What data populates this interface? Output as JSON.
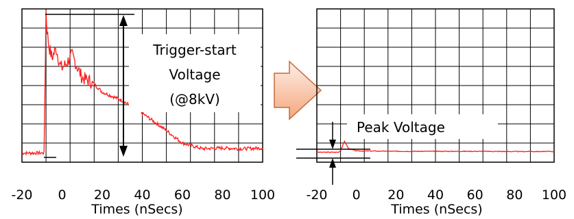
{
  "colors": {
    "trace": "#ff1a1a",
    "grid": "#000000",
    "arrow_fill_top": "#fdeee6",
    "arrow_fill_bottom": "#f4a77e",
    "arrow_stroke": "#c46a3a"
  },
  "chart_data": [
    {
      "type": "line",
      "xlabel": "Times (nSecs)",
      "ylabel": "",
      "xlim": [
        -20,
        100
      ],
      "x_ticks": [
        "-20",
        "0",
        "20",
        "40",
        "60",
        "80",
        "100"
      ],
      "grid": true,
      "annotation": {
        "lines": [
          "Trigger-start",
          "Voltage",
          "(@8kV)"
        ]
      },
      "series": [
        {
          "x": [
            -20,
            -9,
            -8,
            -7.5,
            -6.5,
            -5,
            -3,
            -1,
            0,
            2,
            5,
            10,
            15,
            20,
            30,
            40,
            50,
            60,
            70,
            80,
            90,
            100
          ],
          "y": [
            0.0,
            0.0,
            1.0,
            0.87,
            0.75,
            0.67,
            0.74,
            0.62,
            0.6,
            0.63,
            0.69,
            0.53,
            0.5,
            0.43,
            0.37,
            0.28,
            0.18,
            0.07,
            0.03,
            0.035,
            0.03,
            0.035
          ]
        }
      ]
    },
    {
      "type": "line",
      "xlabel": "Times (nSecs)",
      "ylabel": "",
      "xlim": [
        -20,
        100
      ],
      "x_ticks": [
        "-20",
        "0",
        "20",
        "40",
        "60",
        "80",
        "100"
      ],
      "grid": true,
      "annotation": {
        "lines": [
          "Peak Voltage"
        ]
      },
      "series": [
        {
          "x": [
            -20,
            -9,
            -8,
            -6,
            -4,
            0,
            20,
            40,
            60,
            80,
            100
          ],
          "y": [
            0.0,
            0.0,
            0.02,
            0.12,
            0.04,
            0.015,
            0.01,
            0.01,
            0.01,
            0.008,
            0.008
          ]
        }
      ]
    }
  ]
}
